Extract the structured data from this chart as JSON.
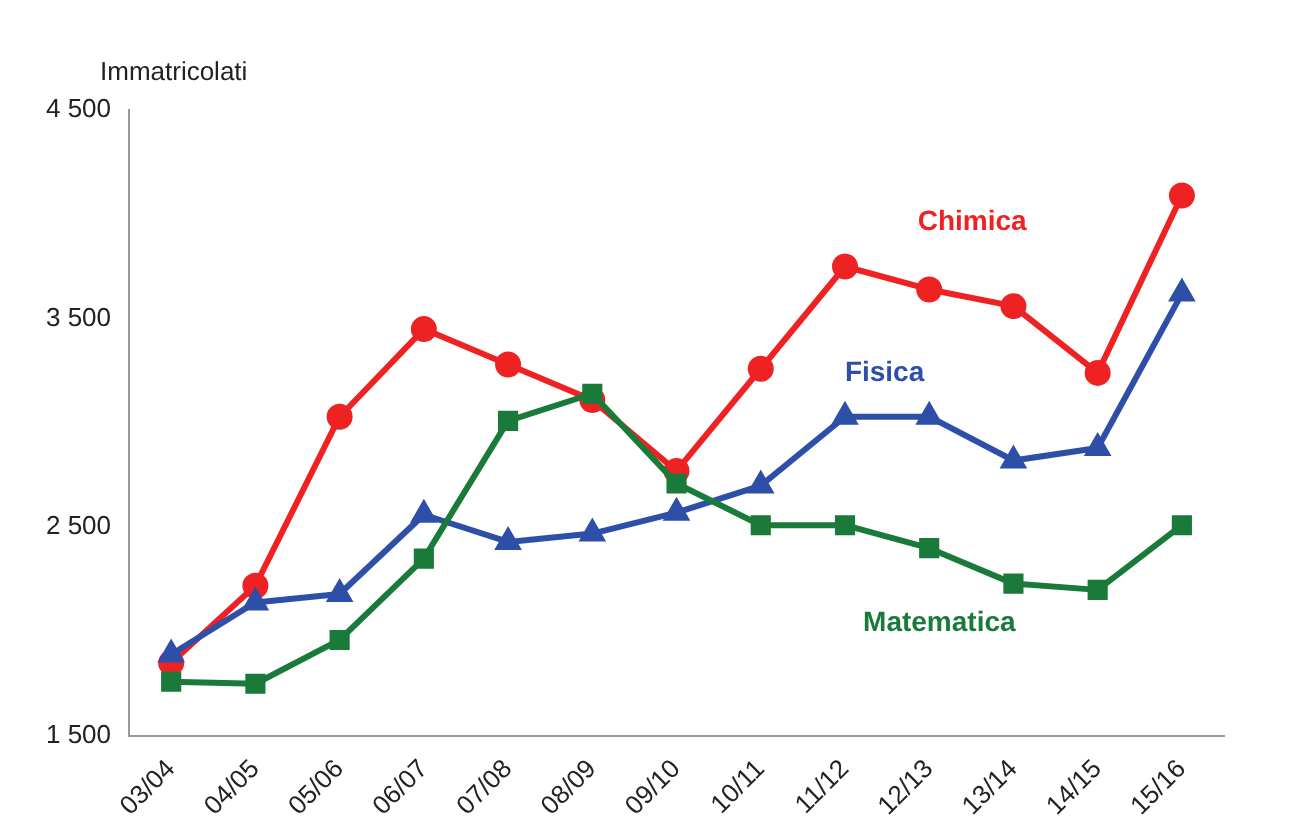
{
  "chart_data": {
    "type": "line",
    "ylabel": "Immatricolati",
    "categories": [
      "03/04",
      "04/05",
      "05/06",
      "06/07",
      "07/08",
      "08/09",
      "09/10",
      "10/11",
      "11/12",
      "12/13",
      "13/14",
      "14/15",
      "15/16"
    ],
    "ylim": [
      1500,
      4500
    ],
    "yticks": [
      {
        "value": 1500,
        "label": "1 500"
      },
      {
        "value": 2500,
        "label": "2 500"
      },
      {
        "value": 3500,
        "label": "3 500"
      },
      {
        "value": 4500,
        "label": "4 500"
      }
    ],
    "grid": false,
    "legend": false,
    "line_style": "solid",
    "series": [
      {
        "name": "Chimica",
        "color": "#ee2222",
        "marker": "circle",
        "values": [
          1850,
          2220,
          3030,
          3450,
          3280,
          3110,
          2770,
          3260,
          3750,
          3640,
          3560,
          3240,
          4090
        ]
      },
      {
        "name": "Fisica",
        "color": "#2e4fa8",
        "marker": "triangle",
        "values": [
          1890,
          2140,
          2180,
          2560,
          2430,
          2470,
          2570,
          2700,
          3030,
          3030,
          2820,
          2880,
          3620
        ]
      },
      {
        "name": "Matematica",
        "color": "#1a7a3a",
        "marker": "square",
        "values": [
          1760,
          1750,
          1960,
          2350,
          3010,
          3140,
          2710,
          2510,
          2510,
          2400,
          2230,
          2200,
          2510
        ]
      }
    ]
  }
}
